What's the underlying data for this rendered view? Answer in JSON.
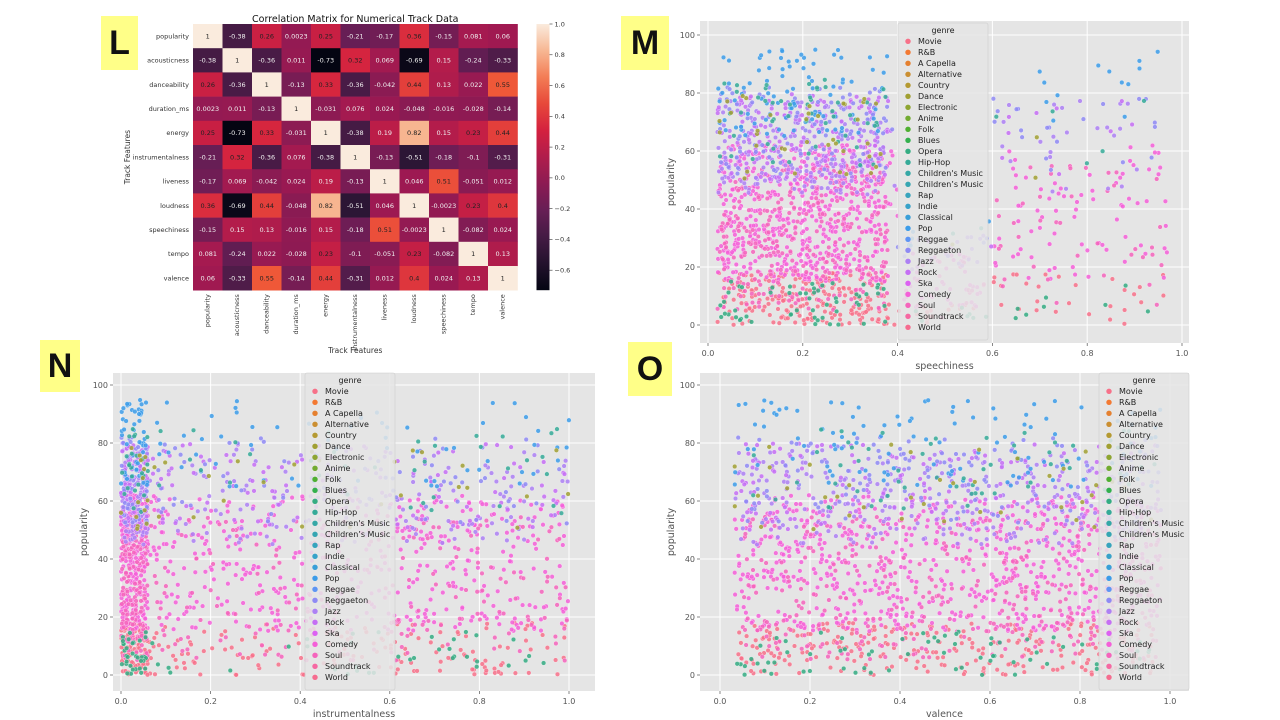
{
  "labels": {
    "L": "L",
    "M": "M",
    "N": "N",
    "O": "O"
  },
  "chart_data": [
    {
      "id": "L",
      "type": "heatmap",
      "title": "Correlation Matrix for Numerical Track Data",
      "xlabel": "Track Features",
      "ylabel": "Track Features",
      "features": [
        "popularity",
        "acousticness",
        "danceability",
        "duration_ms",
        "energy",
        "instrumentalness",
        "liveness",
        "loudness",
        "speechiness",
        "tempo",
        "valence"
      ],
      "matrix": [
        [
          "1",
          "-0.38",
          "0.26",
          "0.0023",
          "0.25",
          "-0.21",
          "-0.17",
          "0.36",
          "-0.15",
          "0.081",
          "0.06"
        ],
        [
          "-0.38",
          "1",
          "-0.36",
          "0.011",
          "-0.73",
          "0.32",
          "0.069",
          "-0.69",
          "0.15",
          "-0.24",
          "-0.33"
        ],
        [
          "0.26",
          "-0.36",
          "1",
          "-0.13",
          "0.33",
          "-0.36",
          "-0.042",
          "0.44",
          "0.13",
          "0.022",
          "0.55"
        ],
        [
          "0.0023",
          "0.011",
          "-0.13",
          "1",
          "-0.031",
          "0.076",
          "0.024",
          "-0.048",
          "-0.016",
          "-0.028",
          "-0.14"
        ],
        [
          "0.25",
          "-0.73",
          "0.33",
          "-0.031",
          "1",
          "-0.38",
          "0.19",
          "0.82",
          "0.15",
          "0.23",
          "0.44"
        ],
        [
          "-0.21",
          "0.32",
          "-0.36",
          "0.076",
          "-0.38",
          "1",
          "-0.13",
          "-0.51",
          "-0.18",
          "-0.1",
          "-0.31"
        ],
        [
          "-0.17",
          "0.069",
          "-0.042",
          "0.024",
          "0.19",
          "-0.13",
          "1",
          "0.046",
          "0.51",
          "-0.051",
          "0.012"
        ],
        [
          "0.36",
          "-0.69",
          "0.44",
          "-0.048",
          "0.82",
          "-0.51",
          "0.046",
          "1",
          "-0.0023",
          "0.23",
          "0.4"
        ],
        [
          "-0.15",
          "0.15",
          "0.13",
          "-0.016",
          "0.15",
          "-0.18",
          "0.51",
          "-0.0023",
          "1",
          "-0.082",
          "0.024"
        ],
        [
          "0.081",
          "-0.24",
          "0.022",
          "-0.028",
          "0.23",
          "-0.1",
          "-0.051",
          "0.23",
          "-0.082",
          "1",
          "0.13"
        ],
        [
          "0.06",
          "-0.33",
          "0.55",
          "-0.14",
          "0.44",
          "-0.31",
          "0.012",
          "0.4",
          "0.024",
          "0.13",
          "1"
        ]
      ],
      "colorbar_ticks": [
        "1.0",
        "0.8",
        "0.6",
        "0.4",
        "0.2",
        "0.0",
        "−0.2",
        "−0.4",
        "−0.6"
      ],
      "colorbar_values": [
        1.0,
        0.8,
        0.6,
        0.4,
        0.2,
        0.0,
        -0.2,
        -0.4,
        -0.6
      ],
      "vmin": -0.73,
      "vmax": 1.0
    },
    {
      "id": "M",
      "type": "scatter",
      "xlabel": "speechiness",
      "ylabel": "popularity",
      "xlim": [
        0.0,
        1.0
      ],
      "ylim": [
        0,
        100
      ],
      "xticks": [
        0.0,
        0.2,
        0.4,
        0.6,
        0.8,
        1.0
      ],
      "xtick_labels": [
        "0.0",
        "0.2",
        "0.4",
        "0.6",
        "0.8",
        "1.0"
      ],
      "yticks": [
        0,
        20,
        40,
        60,
        80,
        100
      ],
      "ytick_labels": [
        "0",
        "20",
        "40",
        "60",
        "80",
        "100"
      ],
      "grid": true,
      "legend_placement": "upper-center"
    },
    {
      "id": "N",
      "type": "scatter",
      "xlabel": "instrumentalness",
      "ylabel": "popularity",
      "xlim": [
        0.0,
        1.0
      ],
      "ylim": [
        0,
        100
      ],
      "xticks": [
        0.0,
        0.2,
        0.4,
        0.6,
        0.8,
        1.0
      ],
      "xtick_labels": [
        "0.0",
        "0.2",
        "0.4",
        "0.6",
        "0.8",
        "1.0"
      ],
      "yticks": [
        0,
        20,
        40,
        60,
        80,
        100
      ],
      "ytick_labels": [
        "0",
        "20",
        "40",
        "60",
        "80",
        "100"
      ],
      "grid": true,
      "legend_placement": "upper-center"
    },
    {
      "id": "O",
      "type": "scatter",
      "xlabel": "valence",
      "ylabel": "popularity",
      "xlim": [
        0.0,
        1.0
      ],
      "ylim": [
        0,
        100
      ],
      "xticks": [
        0.0,
        0.2,
        0.4,
        0.6,
        0.8,
        1.0
      ],
      "xtick_labels": [
        "0.0",
        "0.2",
        "0.4",
        "0.6",
        "0.8",
        "1.0"
      ],
      "yticks": [
        0,
        20,
        40,
        60,
        80,
        100
      ],
      "ytick_labels": [
        "0",
        "20",
        "40",
        "60",
        "80",
        "100"
      ],
      "grid": true,
      "legend_placement": "upper-right"
    }
  ],
  "legend": {
    "title": "genre",
    "entries": [
      {
        "name": "Movie",
        "color": "#f77189"
      },
      {
        "name": "R&B",
        "color": "#f37932"
      },
      {
        "name": "A Capella",
        "color": "#e5802f"
      },
      {
        "name": "Alternative",
        "color": "#cb8f32"
      },
      {
        "name": "Country",
        "color": "#b59a32"
      },
      {
        "name": "Dance",
        "color": "#a1a032"
      },
      {
        "name": "Electronic",
        "color": "#8ea531"
      },
      {
        "name": "Anime",
        "color": "#72ab31"
      },
      {
        "name": "Folk",
        "color": "#4fb031"
      },
      {
        "name": "Blues",
        "color": "#33b04d"
      },
      {
        "name": "Opera",
        "color": "#34ac82"
      },
      {
        "name": "Hip-Hop",
        "color": "#35aa98"
      },
      {
        "name": "Children's Music",
        "color": "#35a8a6"
      },
      {
        "name": "Children’s Music",
        "color": "#36a6b2"
      },
      {
        "name": "Rap",
        "color": "#37a4bd"
      },
      {
        "name": "Indie",
        "color": "#38a2c9"
      },
      {
        "name": "Classical",
        "color": "#3a9fd8"
      },
      {
        "name": "Pop",
        "color": "#3c9ce9"
      },
      {
        "name": "Reggae",
        "color": "#5e95f4"
      },
      {
        "name": "Reggaeton",
        "color": "#8f8af4"
      },
      {
        "name": "Jazz",
        "color": "#ad80f4"
      },
      {
        "name": "Rock",
        "color": "#c56ff4"
      },
      {
        "name": "Ska",
        "color": "#dc61f2"
      },
      {
        "name": "Comedy",
        "color": "#f45fd8"
      },
      {
        "name": "Soul",
        "color": "#f564bc"
      },
      {
        "name": "Soundtrack",
        "color": "#f668a2"
      },
      {
        "name": "World",
        "color": "#f66c8f"
      }
    ]
  },
  "colors": {
    "plot_bg": "#e5e5e5",
    "grid": "#ffffff",
    "badge": "#ffff88"
  }
}
